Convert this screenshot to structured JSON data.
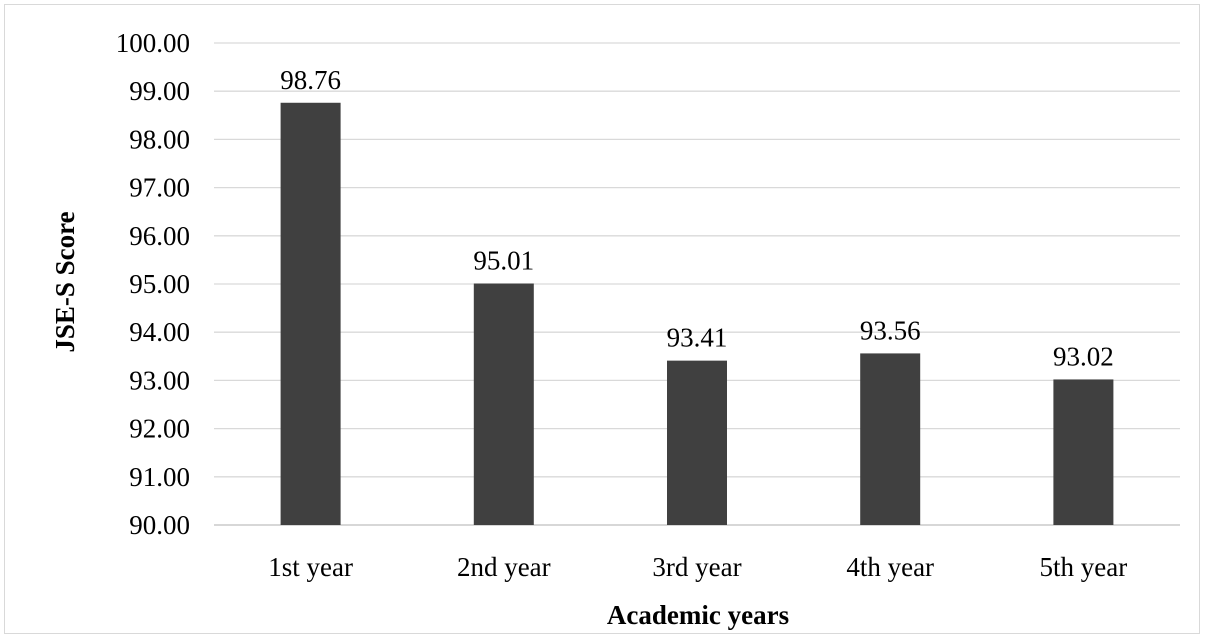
{
  "chart_data": {
    "type": "bar",
    "categories": [
      "1st year",
      "2nd year",
      "3rd year",
      "4th year",
      "5th year"
    ],
    "values": [
      98.76,
      95.01,
      93.41,
      93.56,
      93.02
    ],
    "value_labels": [
      "98.76",
      "95.01",
      "93.41",
      "93.56",
      "93.02"
    ],
    "title": "",
    "xlabel": "Academic years",
    "ylabel": "JSE-S Score",
    "ylim": [
      90,
      100
    ],
    "yticks": [
      90,
      91,
      92,
      93,
      94,
      95,
      96,
      97,
      98,
      99,
      100
    ],
    "ytick_labels": [
      "90.00",
      "91.00",
      "92.00",
      "93.00",
      "94.00",
      "95.00",
      "96.00",
      "97.00",
      "98.00",
      "99.00",
      "100.00"
    ],
    "grid": true,
    "legend": "none",
    "bar_color": "#404040"
  }
}
